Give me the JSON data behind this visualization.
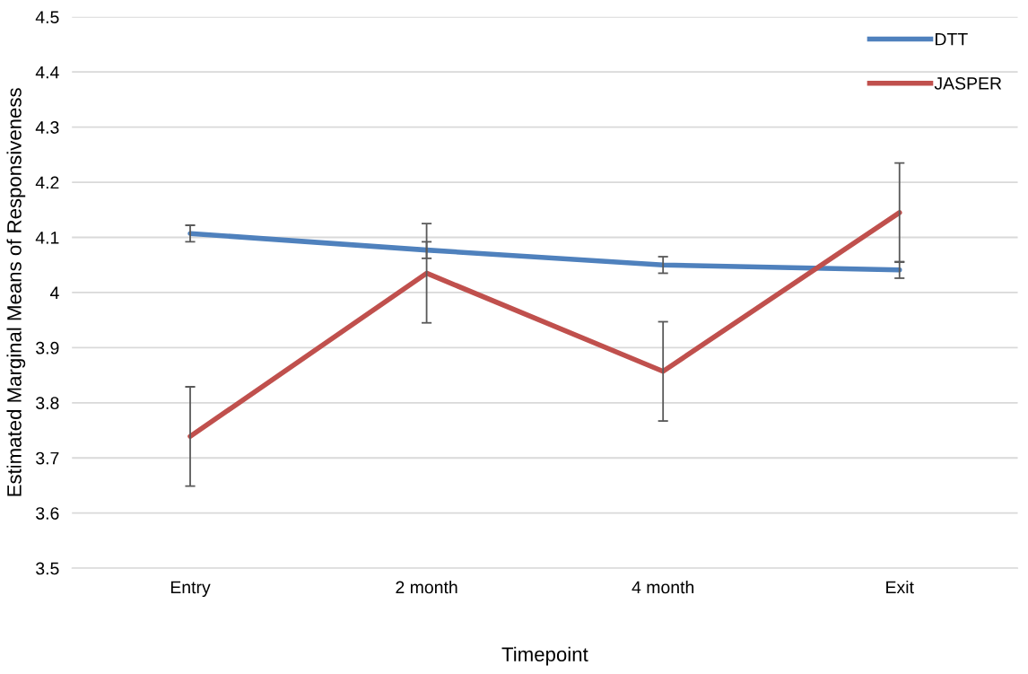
{
  "chart_data": {
    "type": "line",
    "xlabel": "Timepoint",
    "ylabel": "Estimated Marginal Means of Responsiveness",
    "categories": [
      "Entry",
      "2 month",
      "4 month",
      "Exit"
    ],
    "series": [
      {
        "name": "DTT",
        "color": "#4f81bd",
        "values": [
          4.107,
          4.077,
          4.05,
          4.041
        ],
        "errors": [
          0.015,
          0.015,
          0.015,
          0.015
        ]
      },
      {
        "name": "JASPER",
        "color": "#c0504d",
        "values": [
          3.739,
          4.035,
          3.857,
          4.145
        ],
        "errors": [
          0.09,
          0.09,
          0.09,
          0.09
        ]
      }
    ],
    "ylim": [
      3.5,
      4.5
    ],
    "yticks": [
      3.5,
      3.6,
      3.7,
      3.8,
      3.9,
      4,
      4.1,
      4.2,
      4.3,
      4.4,
      4.5
    ],
    "grid": "y",
    "legend": "top right",
    "marker": "none",
    "line_style": "solid"
  }
}
